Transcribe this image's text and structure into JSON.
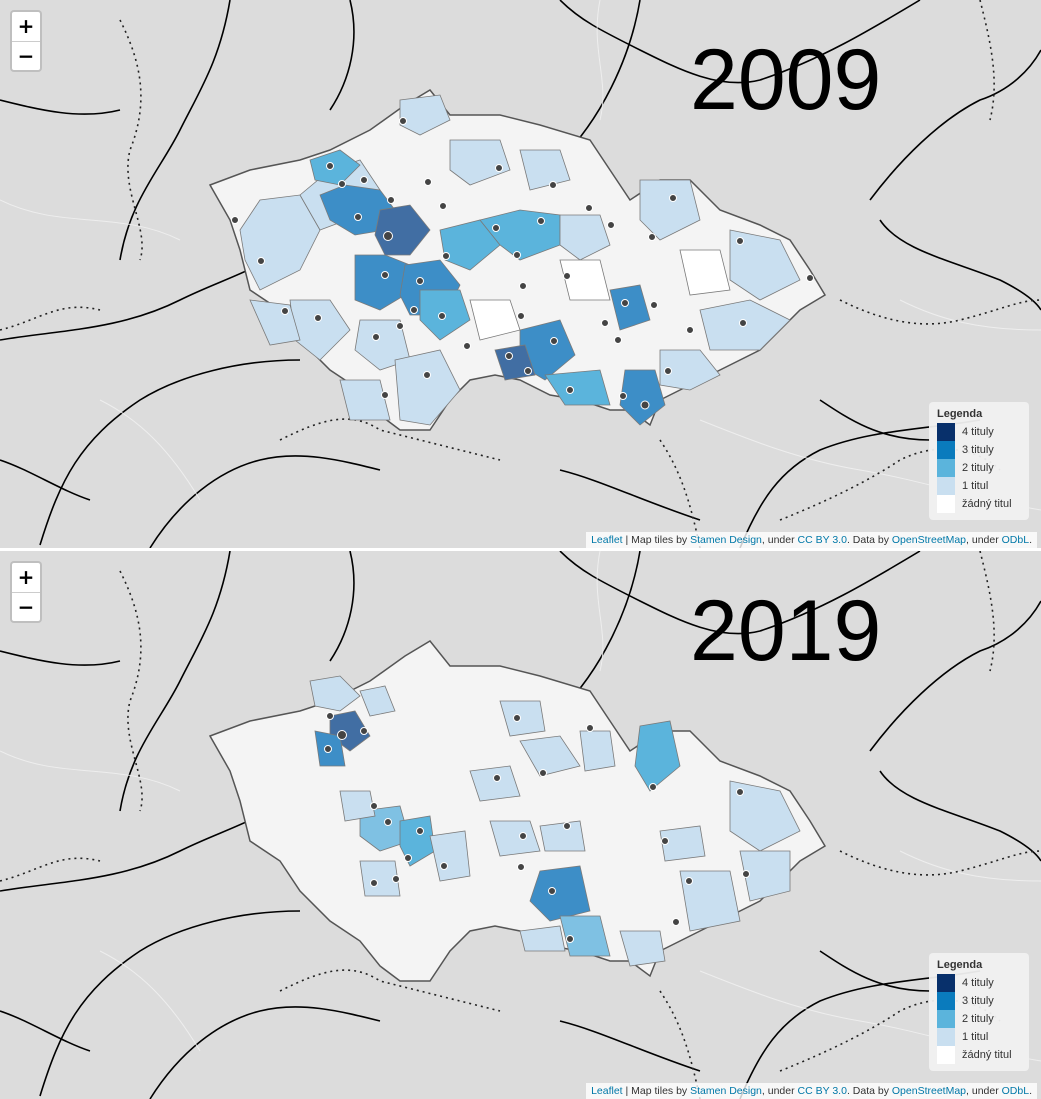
{
  "zoom_controls": {
    "zoom_in": "+",
    "zoom_out": "−"
  },
  "legend": {
    "title": "Legenda",
    "items": [
      {
        "label": "4 tituly",
        "color": "#08306b",
        "count": 4
      },
      {
        "label": "3 tituly",
        "color": "#0a7bbd",
        "count": 3
      },
      {
        "label": "2 tituly",
        "color": "#5bb4dc",
        "count": 2
      },
      {
        "label": "1 titul",
        "color": "#c9dff0",
        "count": 1
      },
      {
        "label": "žádný titul",
        "color": "#ffffff",
        "count": 0
      }
    ]
  },
  "attribution": {
    "leaflet": "Leaflet",
    "sep": " | Map tiles by ",
    "stamen": "Stamen Design",
    "under1": ", under ",
    "ccby": "CC BY 3.0",
    "data_by": ". Data by ",
    "osm": "OpenStreetMap",
    "under2": ", under ",
    "odbl": "ODbL",
    "end": "."
  },
  "maps": [
    {
      "year": "2009",
      "dominant_level": 1
    },
    {
      "year": "2019",
      "dominant_level": 0
    }
  ],
  "colors": {
    "background": "#dcdcdc",
    "region_border": "#7a7a7a",
    "country_border": "#555555",
    "road": "#000000",
    "point": "#444444"
  }
}
